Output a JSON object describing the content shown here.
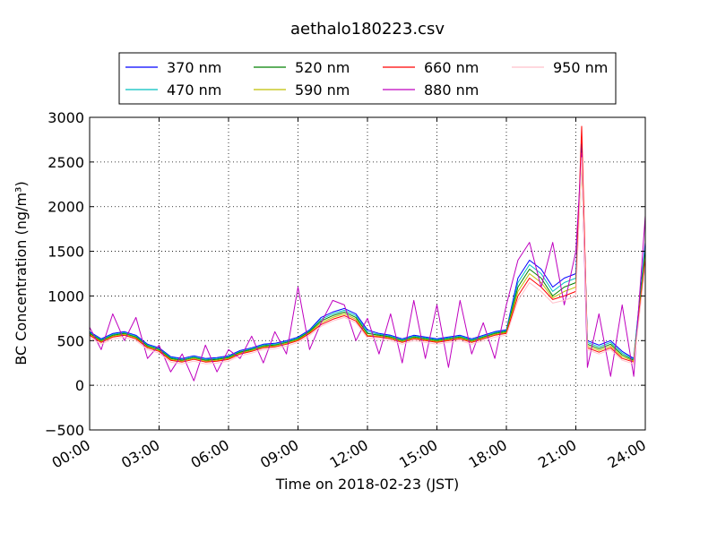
{
  "chart_data": {
    "type": "line",
    "title": "aethalo180223.csv",
    "xlabel": "Time on 2018-02-23 (JST)",
    "ylabel": "BC Concentration (ng/m³)",
    "xlim": [
      "00:00",
      "24:00"
    ],
    "ylim": [
      -500,
      3000
    ],
    "grid": true,
    "legend_position": "top-center",
    "x_ticks": [
      "00:00",
      "03:00",
      "06:00",
      "09:00",
      "12:00",
      "15:00",
      "18:00",
      "21:00",
      "24:00"
    ],
    "y_ticks": [
      "−500",
      "0",
      "500",
      "1000",
      "1500",
      "2000",
      "2500",
      "3000"
    ],
    "x_tick_values": [
      0,
      3,
      6,
      9,
      12,
      15,
      18,
      21,
      24
    ],
    "y_tick_values": [
      -500,
      0,
      500,
      1000,
      1500,
      2000,
      2500,
      3000
    ],
    "x": [
      "00:00",
      "00:30",
      "01:00",
      "01:30",
      "02:00",
      "02:30",
      "03:00",
      "03:30",
      "04:00",
      "04:30",
      "05:00",
      "05:30",
      "06:00",
      "06:30",
      "07:00",
      "07:30",
      "08:00",
      "08:30",
      "09:00",
      "09:30",
      "10:00",
      "10:30",
      "11:00",
      "11:30",
      "12:00",
      "12:30",
      "13:00",
      "13:30",
      "14:00",
      "14:30",
      "15:00",
      "15:30",
      "16:00",
      "16:30",
      "17:00",
      "17:30",
      "18:00",
      "18:30",
      "19:00",
      "19:30",
      "20:00",
      "20:30",
      "21:00",
      "21:15",
      "21:30",
      "22:00",
      "22:30",
      "23:00",
      "23:30",
      "24:00"
    ],
    "series": [
      {
        "name": "370 nm",
        "color": "#0000ff",
        "values": [
          600,
          520,
          580,
          600,
          560,
          460,
          420,
          320,
          300,
          330,
          300,
          310,
          330,
          390,
          420,
          460,
          470,
          500,
          540,
          620,
          760,
          820,
          860,
          800,
          620,
          580,
          560,
          520,
          560,
          540,
          520,
          540,
          560,
          520,
          560,
          600,
          620,
          1200,
          1400,
          1300,
          1100,
          1200,
          1250,
          2700,
          500,
          450,
          500,
          380,
          300,
          1600
        ]
      },
      {
        "name": "470 nm",
        "color": "#00bfbf",
        "values": [
          590,
          510,
          570,
          590,
          550,
          450,
          410,
          310,
          290,
          320,
          290,
          300,
          320,
          380,
          410,
          450,
          460,
          490,
          530,
          610,
          740,
          800,
          840,
          780,
          600,
          570,
          550,
          510,
          550,
          530,
          510,
          530,
          550,
          510,
          550,
          590,
          610,
          1150,
          1350,
          1250,
          1050,
          1150,
          1200,
          2600,
          480,
          430,
          480,
          360,
          290,
          1550
        ]
      },
      {
        "name": "520 nm",
        "color": "#008000",
        "values": [
          580,
          500,
          560,
          580,
          540,
          440,
          400,
          300,
          280,
          310,
          280,
          290,
          310,
          370,
          400,
          440,
          450,
          480,
          520,
          600,
          720,
          780,
          820,
          760,
          580,
          560,
          540,
          500,
          540,
          520,
          500,
          520,
          540,
          500,
          540,
          580,
          600,
          1100,
          1300,
          1200,
          1000,
          1100,
          1150,
          2550,
          460,
          410,
          460,
          340,
          280,
          1500
        ]
      },
      {
        "name": "590 nm",
        "color": "#bfbf00",
        "values": [
          570,
          490,
          550,
          570,
          530,
          430,
          390,
          290,
          270,
          300,
          270,
          280,
          300,
          360,
          390,
          430,
          440,
          470,
          510,
          590,
          700,
          760,
          800,
          740,
          560,
          550,
          530,
          490,
          530,
          510,
          490,
          510,
          530,
          490,
          530,
          570,
          590,
          1050,
          1250,
          1150,
          980,
          1050,
          1100,
          2500,
          440,
          390,
          440,
          320,
          270,
          1450
        ]
      },
      {
        "name": "660 nm",
        "color": "#ff0000",
        "values": [
          560,
          480,
          540,
          560,
          520,
          420,
          380,
          280,
          260,
          290,
          260,
          270,
          290,
          350,
          380,
          420,
          430,
          460,
          500,
          580,
          680,
          740,
          780,
          720,
          550,
          540,
          520,
          480,
          520,
          500,
          480,
          500,
          520,
          480,
          520,
          560,
          580,
          1000,
          1200,
          1100,
          960,
          1000,
          1050,
          2900,
          420,
          370,
          420,
          300,
          260,
          1400
        ]
      },
      {
        "name": "880 nm",
        "color": "#bf00bf",
        "values": [
          650,
          400,
          800,
          500,
          760,
          300,
          450,
          150,
          350,
          50,
          450,
          150,
          400,
          300,
          550,
          250,
          600,
          350,
          1100,
          400,
          700,
          950,
          900,
          500,
          750,
          350,
          800,
          250,
          950,
          300,
          900,
          200,
          950,
          350,
          700,
          300,
          900,
          1400,
          1600,
          1100,
          1600,
          900,
          1500,
          2600,
          200,
          800,
          100,
          900,
          100,
          1900
        ]
      },
      {
        "name": "950 nm",
        "color": "#ffc0cb",
        "values": [
          540,
          460,
          520,
          540,
          500,
          400,
          360,
          260,
          240,
          270,
          240,
          250,
          270,
          330,
          360,
          400,
          410,
          440,
          480,
          560,
          660,
          720,
          760,
          700,
          530,
          520,
          500,
          460,
          500,
          480,
          460,
          480,
          500,
          460,
          500,
          540,
          560,
          950,
          1150,
          1050,
          920,
          950,
          1000,
          2550,
          400,
          350,
          400,
          280,
          240,
          1350
        ]
      }
    ]
  }
}
